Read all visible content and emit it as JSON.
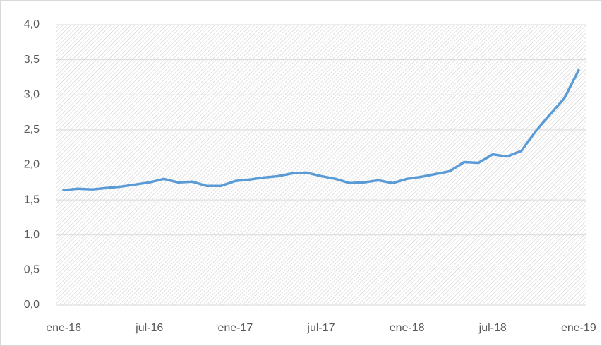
{
  "chart_data": {
    "type": "line",
    "categories": [
      "ene-16",
      null,
      null,
      null,
      null,
      null,
      "jul-16",
      null,
      null,
      null,
      null,
      null,
      "ene-17",
      null,
      null,
      null,
      null,
      null,
      "jul-17",
      null,
      null,
      null,
      null,
      null,
      "ene-18",
      null,
      null,
      null,
      null,
      null,
      "jul-18",
      null,
      null,
      null,
      null,
      null,
      "ene-19"
    ],
    "series": [
      {
        "color": "#5b9bd5",
        "values": [
          1.64,
          1.66,
          1.65,
          1.67,
          1.69,
          1.72,
          1.75,
          1.8,
          1.75,
          1.76,
          1.7,
          1.7,
          1.77,
          1.79,
          1.82,
          1.84,
          1.88,
          1.89,
          1.84,
          1.8,
          1.74,
          1.75,
          1.78,
          1.74,
          1.8,
          1.83,
          1.87,
          1.91,
          2.04,
          2.03,
          2.15,
          2.12,
          2.2,
          2.48,
          2.72,
          2.95,
          3.35
        ]
      }
    ],
    "ylim": [
      0,
      4
    ],
    "yticks": [
      {
        "value": 0,
        "label": "0,0"
      },
      {
        "value": 0.5,
        "label": "0,5"
      },
      {
        "value": 1,
        "label": "1,0"
      },
      {
        "value": 1.5,
        "label": "1,5"
      },
      {
        "value": 2,
        "label": "2,0"
      },
      {
        "value": 2.5,
        "label": "2,5"
      },
      {
        "value": 3,
        "label": "3,0"
      },
      {
        "value": 3.5,
        "label": "3,5"
      },
      {
        "value": 4,
        "label": "4,0"
      }
    ],
    "grid": true
  }
}
